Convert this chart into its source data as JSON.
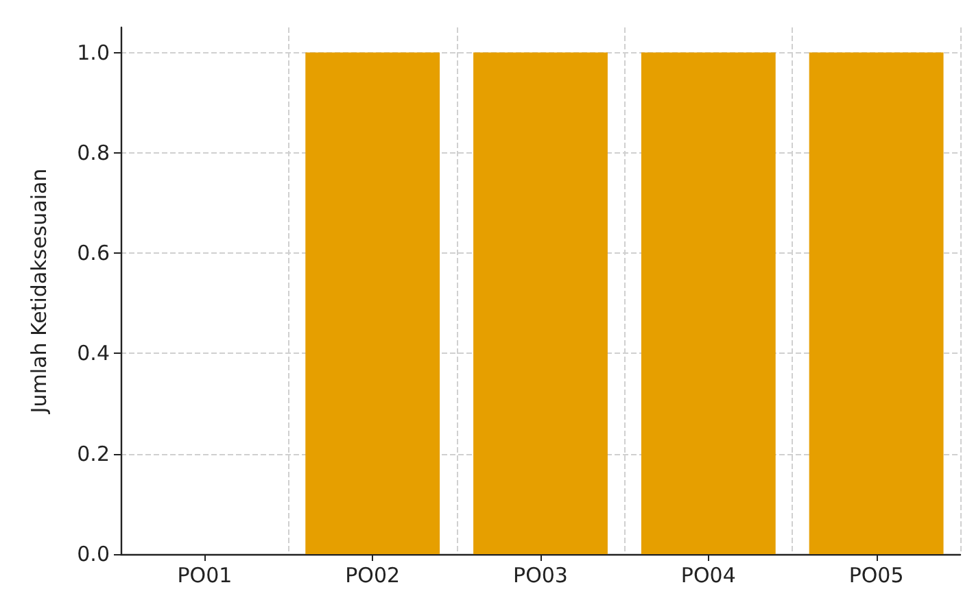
{
  "chart_data": {
    "type": "bar",
    "ylabel": "Jumlah Ketidaksesuaian",
    "categories": [
      "PO01",
      "PO02",
      "PO03",
      "PO04",
      "PO05"
    ],
    "values": [
      0,
      1,
      1,
      1,
      1
    ],
    "color": "#e69f00",
    "ylim": [
      0,
      1.05
    ],
    "yticks": [
      {
        "value": 0,
        "label": "0.0"
      },
      {
        "value": 0.2,
        "label": "0.2"
      },
      {
        "value": 0.4,
        "label": "0.4"
      },
      {
        "value": 0.6,
        "label": "0.6"
      },
      {
        "value": 0.8,
        "label": "0.8"
      },
      {
        "value": 1,
        "label": "1.0"
      }
    ],
    "grid": true
  }
}
